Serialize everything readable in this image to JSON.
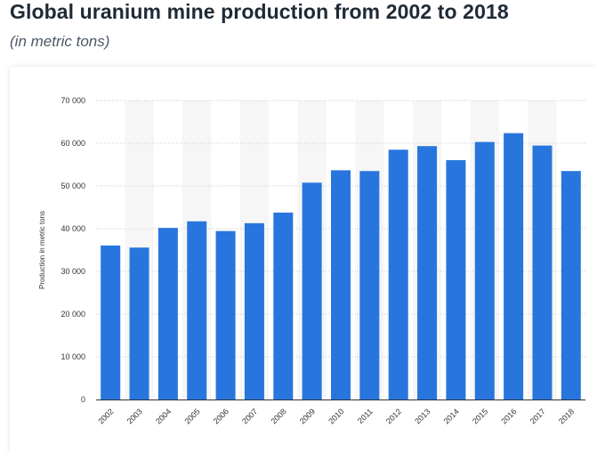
{
  "header": {
    "title": "Global uranium mine production from 2002 to 2018",
    "subtitle": "(in metric tons)"
  },
  "chart_data": {
    "type": "bar",
    "title": "Global uranium mine production from 2002 to 2018",
    "subtitle": "(in metric tons)",
    "xlabel": "",
    "ylabel": "Production in metric tons",
    "ylim": [
      0,
      70000
    ],
    "yticks": [
      0,
      10000,
      20000,
      30000,
      40000,
      50000,
      60000,
      70000
    ],
    "ytick_labels": [
      "0",
      "10 000",
      "20 000",
      "30 000",
      "40 000",
      "50 000",
      "60 000",
      "70 000"
    ],
    "categories": [
      "2002",
      "2003",
      "2004",
      "2005",
      "2006",
      "2007",
      "2008",
      "2009",
      "2010",
      "2011",
      "2012",
      "2013",
      "2014",
      "2015",
      "2016",
      "2017",
      "2018"
    ],
    "values": [
      36063,
      35574,
      40178,
      41719,
      39444,
      41282,
      43764,
      50772,
      53671,
      53493,
      58493,
      59331,
      56041,
      60304,
      62366,
      59462,
      53498
    ],
    "grid": true,
    "legend": "none",
    "colors": {
      "bar": "#2876dd",
      "band": "#f6f6f6",
      "grid": "#c8c8c8",
      "axis": "#333333"
    }
  }
}
